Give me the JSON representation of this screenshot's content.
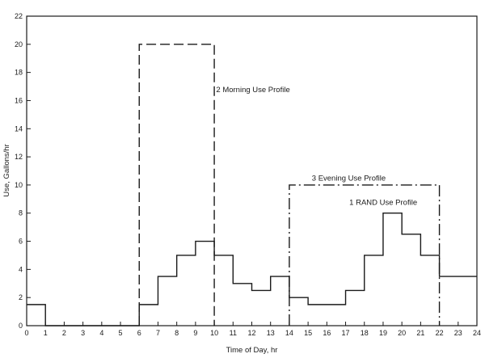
{
  "chart_data": {
    "type": "line",
    "title": "",
    "xlabel": "Time of Day, hr",
    "ylabel": "Use, Gallons/hr",
    "xlim": [
      0,
      24
    ],
    "ylim": [
      0,
      22
    ],
    "x_ticks": [
      0,
      1,
      2,
      3,
      4,
      5,
      6,
      7,
      8,
      9,
      10,
      11,
      12,
      13,
      14,
      15,
      16,
      17,
      18,
      19,
      20,
      21,
      22,
      23,
      24
    ],
    "y_ticks": [
      0,
      2,
      4,
      6,
      8,
      10,
      12,
      14,
      16,
      18,
      20,
      22
    ],
    "grid": false,
    "legend": "none",
    "series": [
      {
        "name": "1 RAND Use Profile",
        "style": "solid",
        "color": "#1a1a1a",
        "hours": [
          0,
          1,
          2,
          3,
          4,
          5,
          6,
          7,
          8,
          9,
          10,
          11,
          12,
          13,
          14,
          15,
          16,
          17,
          18,
          19,
          20,
          21,
          22,
          23
        ],
        "values": [
          1.5,
          0,
          0,
          0,
          0,
          0,
          1.5,
          3.5,
          5,
          6,
          5,
          3,
          2.5,
          3.5,
          2,
          1.5,
          1.5,
          2.5,
          5,
          8,
          6.5,
          5,
          3.5,
          3.5
        ]
      },
      {
        "name": "2 Morning Use Profile",
        "style": "dashed",
        "color": "#1a1a1a",
        "x_start": 6,
        "x_end": 10,
        "value": 20
      },
      {
        "name": "3 Evening Use Profile",
        "style": "dash-dot",
        "color": "#1a1a1a",
        "x_start": 14,
        "x_end": 22,
        "value": 10
      }
    ],
    "annotations": [
      {
        "text": "2 Morning Use Profile",
        "x": 10.1,
        "y": 16.6
      },
      {
        "text": "3 Evening Use Profile",
        "x": 15.2,
        "y": 10.3
      },
      {
        "text": "1 RAND Use Profile",
        "x": 17.2,
        "y": 8.6
      }
    ]
  }
}
